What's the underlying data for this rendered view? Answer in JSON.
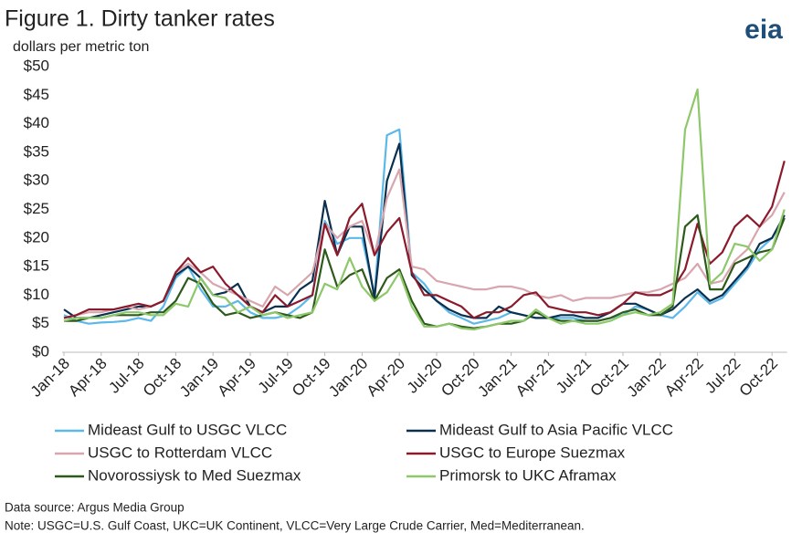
{
  "chart_data": {
    "type": "line",
    "title": "Figure 1. Dirty tanker rates",
    "subtitle": "dollars per metric ton",
    "logo": "eia",
    "source": "Data source: Argus Media Group",
    "note": "Note: USGC=U.S. Gulf Coast, UKC=UK Continent, VLCC=Very Large Crude Carrier, Med=Mediterranean.",
    "ylim": [
      0,
      50
    ],
    "yticks": [
      {
        "value": 0,
        "label": "$0"
      },
      {
        "value": 5,
        "label": "$5"
      },
      {
        "value": 10,
        "label": "$10"
      },
      {
        "value": 15,
        "label": "$15"
      },
      {
        "value": 20,
        "label": "$20"
      },
      {
        "value": 25,
        "label": "$25"
      },
      {
        "value": 30,
        "label": "$30"
      },
      {
        "value": 35,
        "label": "$35"
      },
      {
        "value": 40,
        "label": "$40"
      },
      {
        "value": 45,
        "label": "$45"
      },
      {
        "value": 50,
        "label": "$50"
      }
    ],
    "grid": false,
    "categories": [
      "Jan-18",
      null,
      null,
      "Apr-18",
      null,
      null,
      "Jul-18",
      null,
      null,
      "Oct-18",
      null,
      null,
      "Jan-19",
      null,
      null,
      "Apr-19",
      null,
      null,
      "Jul-19",
      null,
      null,
      "Oct-19",
      null,
      null,
      "Jan-20",
      null,
      null,
      "Apr-20",
      null,
      null,
      "Jul-20",
      null,
      null,
      "Oct-20",
      null,
      null,
      "Jan-21",
      null,
      null,
      "Apr-21",
      null,
      null,
      "Jul-21",
      null,
      null,
      "Oct-21",
      null,
      null,
      "Jan-22",
      null,
      null,
      "Apr-22",
      null,
      null,
      "Jul-22",
      null,
      null,
      "Oct-22",
      null
    ],
    "series": [
      {
        "name": "Mideast Gulf to USGC VLCC",
        "color": "#5bb8e8",
        "values": [
          6.5,
          5.5,
          5,
          5.2,
          5.3,
          5.5,
          6,
          5.5,
          8,
          13,
          15,
          11,
          8,
          8,
          9,
          7,
          6,
          6,
          6.5,
          8,
          10,
          23,
          19,
          20,
          20,
          10,
          38,
          39,
          14,
          12,
          9,
          7,
          6,
          5,
          5.5,
          6,
          7,
          6.5,
          6,
          6,
          6,
          6,
          5.5,
          5.5,
          6,
          6.5,
          8,
          7.5,
          6.5,
          6,
          8,
          10.5,
          8.5,
          9.5,
          12,
          14.5,
          18,
          20,
          24
        ]
      },
      {
        "name": "Mideast Gulf to Asia Pacific VLCC",
        "color": "#0b2f4f",
        "values": [
          7.5,
          6,
          6,
          6.5,
          7,
          7.5,
          8,
          8,
          9,
          13.5,
          15,
          13,
          10,
          10.5,
          12,
          8,
          7,
          8,
          8,
          11,
          12.5,
          26.5,
          17,
          22,
          22,
          9.5,
          30,
          36.5,
          13.5,
          11,
          9,
          7.5,
          6.5,
          6,
          6,
          8,
          7,
          6.5,
          6,
          6,
          6.5,
          6.5,
          6,
          6,
          7,
          8.5,
          8.5,
          7.5,
          6.5,
          7.5,
          9.5,
          11,
          9,
          10,
          12.5,
          15,
          19,
          20,
          24
        ]
      },
      {
        "name": "USGC to Rotterdam VLCC",
        "color": "#d8a6ae",
        "values": [
          6,
          6.5,
          7,
          7,
          7.5,
          8,
          7.5,
          8,
          9,
          14,
          15.5,
          14,
          12,
          11,
          10,
          9,
          8,
          11.5,
          10,
          12,
          14,
          22.5,
          20,
          22,
          23,
          17,
          27,
          32,
          15,
          14.5,
          12.5,
          12,
          11.5,
          11,
          11,
          11.5,
          11.5,
          11,
          10,
          9.5,
          10,
          9,
          9.5,
          9.5,
          9.5,
          10,
          10.5,
          10.5,
          11,
          12,
          13,
          15.5,
          12,
          12.5,
          16,
          18,
          22,
          24,
          28
        ]
      },
      {
        "name": "USGC to Europe Suezmax",
        "color": "#8b1a2c",
        "values": [
          6,
          6.5,
          7.5,
          7.5,
          7.5,
          8,
          8.5,
          8,
          9,
          14,
          16.5,
          14,
          15,
          12,
          10,
          8,
          7,
          10,
          8,
          9,
          10,
          22.5,
          17,
          23.5,
          26,
          17,
          21,
          23.5,
          14,
          10,
          10,
          9,
          8,
          6,
          7,
          7,
          8,
          10,
          10.5,
          8,
          7.5,
          7,
          7,
          6.5,
          7,
          8.5,
          10.5,
          10,
          10,
          11,
          14.5,
          22.5,
          15.5,
          17.5,
          22,
          24,
          22,
          25.5,
          33.5
        ]
      },
      {
        "name": "Novorossiysk to Med Suezmax",
        "color": "#2d5a1b",
        "values": [
          5.5,
          5.5,
          6,
          6,
          6.5,
          6.5,
          6.5,
          7,
          7,
          9,
          13,
          12,
          8.5,
          6.5,
          7,
          6,
          6.5,
          7,
          6.5,
          6,
          7,
          18,
          11.5,
          13.5,
          14.5,
          9,
          13,
          14.5,
          9,
          5,
          4.5,
          5,
          4.5,
          4.2,
          4.5,
          5,
          5,
          5.5,
          7,
          6,
          5.5,
          5.5,
          5.5,
          5.5,
          6,
          7,
          7.5,
          6.5,
          6.5,
          8,
          22,
          24,
          11,
          11,
          15.5,
          16.5,
          17.5,
          18,
          23.5
        ]
      },
      {
        "name": "Primorsk to UKC Aframax",
        "color": "#8dc86a",
        "values": [
          5.5,
          6,
          6,
          6,
          6.5,
          7,
          7,
          6.5,
          6.5,
          8.5,
          8,
          13,
          10,
          9.5,
          7,
          8,
          6.5,
          7,
          6,
          6.5,
          7,
          12,
          11,
          16.5,
          11.5,
          9,
          10.5,
          14,
          8,
          4.5,
          4.5,
          5,
          4.2,
          4,
          4.5,
          5,
          5.5,
          5.5,
          7.5,
          6,
          5,
          5.5,
          5,
          5,
          5.5,
          6.5,
          7,
          6.5,
          7,
          8.5,
          39,
          46,
          12,
          14,
          19,
          18.5,
          16,
          18,
          25
        ]
      }
    ]
  }
}
